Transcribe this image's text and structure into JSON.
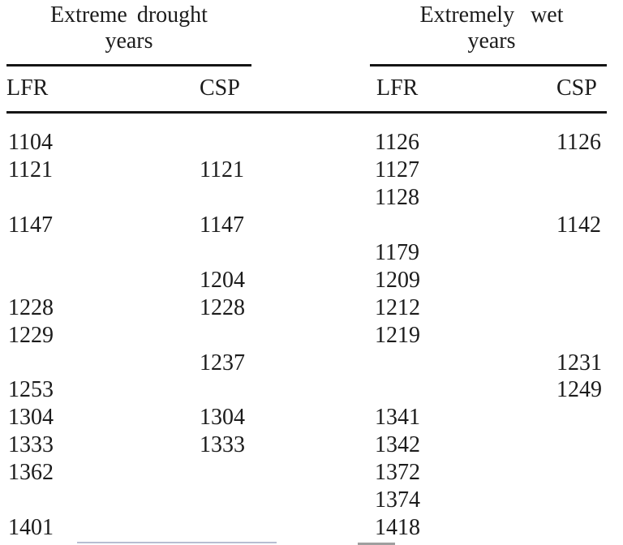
{
  "theme": {
    "background": "#ffffff",
    "text_color": "#1b1b1b",
    "rule_color": "#151515"
  },
  "table": {
    "groups": [
      {
        "title_line1": "Extreme drought",
        "title_line2": "years"
      },
      {
        "title_line1": "Extremely wet",
        "title_line2": "years"
      }
    ],
    "columns": [
      "LFR",
      "CSP",
      "LFR",
      "CSP"
    ],
    "rows": [
      [
        "1104",
        "",
        "1126",
        "1126"
      ],
      [
        "1121",
        "1121",
        "1127",
        ""
      ],
      [
        "",
        "",
        "1128",
        ""
      ],
      [
        "1147",
        "1147",
        "",
        "1142"
      ],
      [
        "",
        "",
        "1179",
        ""
      ],
      [
        "",
        "1204",
        "1209",
        ""
      ],
      [
        "1228",
        "1228",
        "1212",
        ""
      ],
      [
        "1229",
        "",
        "1219",
        ""
      ],
      [
        "",
        "1237",
        "",
        "1231"
      ],
      [
        "1253",
        "",
        "",
        "1249"
      ],
      [
        "1304",
        "1304",
        "1341",
        ""
      ],
      [
        "1333",
        "1333",
        "1342",
        ""
      ],
      [
        "1362",
        "",
        "1372",
        ""
      ],
      [
        "",
        "",
        "1374",
        ""
      ],
      [
        "1401",
        "",
        "1418",
        ""
      ]
    ]
  }
}
